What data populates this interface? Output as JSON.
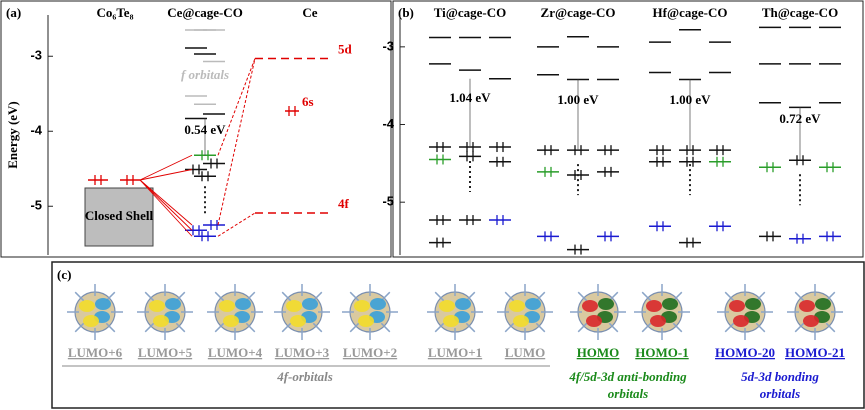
{
  "panel_a": {
    "label": "(a)",
    "y_label": "Energy (eV)",
    "ylim": [
      -2.45,
      -5.65
    ],
    "yticks": [
      -3,
      -4,
      -5
    ],
    "columns": [
      {
        "title": "Co₆Te₈",
        "levels": [
          {
            "e": -4.65,
            "color": "#e00000",
            "occ": true
          },
          {
            "e": -4.65,
            "color": "#e00000",
            "occ": true
          }
        ]
      },
      {
        "title": "Ce@cage-CO",
        "levels": [
          {
            "e": -2.65,
            "color": "#bbbbbb"
          },
          {
            "e": -2.65,
            "color": "#bbbbbb"
          },
          {
            "e": -2.65,
            "color": "#bbbbbb"
          },
          {
            "e": -2.89,
            "color": "#111111"
          },
          {
            "e": -2.97,
            "color": "#111111"
          },
          {
            "e": -3.07,
            "color": "#bbbbbb"
          },
          {
            "e": -3.53,
            "color": "#bbbbbb"
          },
          {
            "e": -3.64,
            "color": "#bbbbbb"
          },
          {
            "e": -3.77,
            "color": "#111111"
          },
          {
            "e": -3.83,
            "color": "#111111"
          },
          {
            "e": -4.32,
            "color": "#2a9d2a",
            "occ": true
          },
          {
            "e": -4.43,
            "color": "#111111",
            "occ": true
          },
          {
            "e": -4.51,
            "color": "#111111",
            "occ": true
          },
          {
            "e": -4.6,
            "color": "#111111",
            "occ": true
          },
          {
            "e": -5.25,
            "color": "#1a1ad0",
            "occ": true
          },
          {
            "e": -5.32,
            "color": "#1a1ad0",
            "occ": true
          },
          {
            "e": -5.4,
            "color": "#1a1ad0",
            "occ": true
          }
        ]
      },
      {
        "title": "Ce",
        "levels": [
          {
            "e": -3.03,
            "color": "#e00000",
            "label": "5d"
          },
          {
            "e": -3.73,
            "color": "#e00000",
            "occ": true,
            "label": "6s"
          },
          {
            "e": -5.09,
            "color": "#e00000",
            "label": "4f"
          }
        ]
      }
    ],
    "f_label": "f orbitals",
    "gap": "0.54 eV",
    "closed_shell": "Closed Shell"
  },
  "panel_b": {
    "label": "(b)",
    "ylim": [
      -2.59,
      -5.68
    ],
    "yticks": [
      -3,
      -4,
      -5
    ],
    "columns": [
      {
        "title": "Ti@cage-CO",
        "gap": "1.04 eV",
        "levels": [
          {
            "e": -2.88,
            "color": "#111111"
          },
          {
            "e": -2.88,
            "color": "#111111"
          },
          {
            "e": -2.88,
            "color": "#111111"
          },
          {
            "e": -3.22,
            "color": "#111111"
          },
          {
            "e": -3.3,
            "color": "#111111"
          },
          {
            "e": -3.41,
            "color": "#111111"
          },
          {
            "e": -4.29,
            "color": "#111111",
            "occ": true
          },
          {
            "e": -4.29,
            "color": "#111111",
            "occ": true
          },
          {
            "e": -4.29,
            "color": "#111111",
            "occ": true
          },
          {
            "e": -4.45,
            "color": "#2a9d2a",
            "occ": true
          },
          {
            "e": -4.41,
            "color": "#111111",
            "occ": true
          },
          {
            "e": -4.48,
            "color": "#111111",
            "occ": true
          },
          {
            "e": -5.23,
            "color": "#111111",
            "occ": true
          },
          {
            "e": -5.23,
            "color": "#111111",
            "occ": true
          },
          {
            "e": -5.23,
            "color": "#1a1ad0",
            "occ": true
          },
          {
            "e": -5.52,
            "color": "#111111",
            "occ": true
          }
        ]
      },
      {
        "title": "Zr@cage-CO",
        "gap": "1.00 eV",
        "levels": [
          {
            "e": -3.0,
            "color": "#111111"
          },
          {
            "e": -2.87,
            "color": "#111111"
          },
          {
            "e": -3.0,
            "color": "#111111"
          },
          {
            "e": -3.36,
            "color": "#111111"
          },
          {
            "e": -3.42,
            "color": "#111111"
          },
          {
            "e": -3.42,
            "color": "#111111"
          },
          {
            "e": -4.33,
            "color": "#111111",
            "occ": true
          },
          {
            "e": -4.33,
            "color": "#111111",
            "occ": true
          },
          {
            "e": -4.33,
            "color": "#111111",
            "occ": true
          },
          {
            "e": -4.61,
            "color": "#2a9d2a",
            "occ": true
          },
          {
            "e": -4.65,
            "color": "#111111",
            "occ": true
          },
          {
            "e": -4.61,
            "color": "#111111",
            "occ": true
          },
          {
            "e": -5.44,
            "color": "#1a1ad0",
            "occ": true
          },
          {
            "e": -5.61,
            "color": "#111111",
            "occ": true
          },
          {
            "e": -5.44,
            "color": "#1a1ad0",
            "occ": true
          }
        ]
      },
      {
        "title": "Hf@cage-CO",
        "gap": "1.00 eV",
        "levels": [
          {
            "e": -2.94,
            "color": "#111111"
          },
          {
            "e": -2.78,
            "color": "#111111"
          },
          {
            "e": -2.94,
            "color": "#111111"
          },
          {
            "e": -3.33,
            "color": "#111111"
          },
          {
            "e": -3.42,
            "color": "#111111"
          },
          {
            "e": -3.33,
            "color": "#111111"
          },
          {
            "e": -4.33,
            "color": "#111111",
            "occ": true
          },
          {
            "e": -4.33,
            "color": "#111111",
            "occ": true
          },
          {
            "e": -4.33,
            "color": "#111111",
            "occ": true
          },
          {
            "e": -4.48,
            "color": "#111111",
            "occ": true
          },
          {
            "e": -4.48,
            "color": "#111111",
            "occ": true
          },
          {
            "e": -4.48,
            "color": "#2a9d2a",
            "occ": true
          },
          {
            "e": -5.31,
            "color": "#1a1ad0",
            "occ": true
          },
          {
            "e": -5.52,
            "color": "#111111",
            "occ": true
          },
          {
            "e": -5.31,
            "color": "#1a1ad0",
            "occ": true
          }
        ]
      },
      {
        "title": "Th@cage-CO",
        "gap": "0.72 eV",
        "levels": [
          {
            "e": -2.75,
            "color": "#111111"
          },
          {
            "e": -2.75,
            "color": "#111111"
          },
          {
            "e": -2.75,
            "color": "#111111"
          },
          {
            "e": -3.22,
            "color": "#111111"
          },
          {
            "e": -3.22,
            "color": "#111111"
          },
          {
            "e": -3.22,
            "color": "#111111"
          },
          {
            "e": -3.72,
            "color": "#111111"
          },
          {
            "e": -3.78,
            "color": "#111111"
          },
          {
            "e": -3.72,
            "color": "#111111"
          },
          {
            "e": -4.55,
            "color": "#2a9d2a",
            "occ": true
          },
          {
            "e": -4.46,
            "color": "#111111",
            "occ": true
          },
          {
            "e": -4.55,
            "color": "#2a9d2a",
            "occ": true
          },
          {
            "e": -5.44,
            "color": "#111111",
            "occ": true
          },
          {
            "e": -5.47,
            "color": "#1a1ad0",
            "occ": true
          },
          {
            "e": -5.44,
            "color": "#1a1ad0",
            "occ": true
          }
        ]
      }
    ]
  },
  "panel_c": {
    "label": "(c)",
    "orbitals": [
      {
        "name": "LUMO+6",
        "color": "#999999"
      },
      {
        "name": "LUMO+5",
        "color": "#999999"
      },
      {
        "name": "LUMO+4",
        "color": "#999999"
      },
      {
        "name": "LUMO+3",
        "color": "#999999"
      },
      {
        "name": "LUMO+2",
        "color": "#999999"
      },
      {
        "name": "LUMO+1",
        "color": "#999999"
      },
      {
        "name": "LUMO",
        "color": "#999999"
      },
      {
        "name": "HOMO",
        "color": "#1a8a1a"
      },
      {
        "name": "HOMO-1",
        "color": "#1a8a1a"
      },
      {
        "name": "HOMO-20",
        "color": "#1a1ad0"
      },
      {
        "name": "HOMO-21",
        "color": "#1a1ad0"
      }
    ],
    "groups": [
      {
        "text": [
          "4f-orbitals"
        ],
        "color": "#888888"
      },
      {
        "text": [
          "4f/5d-3d anti-bonding",
          "orbitals"
        ],
        "color": "#1a8a1a"
      },
      {
        "text": [
          "5d-3d bonding",
          "orbitals"
        ],
        "color": "#1a1ad0"
      }
    ]
  }
}
